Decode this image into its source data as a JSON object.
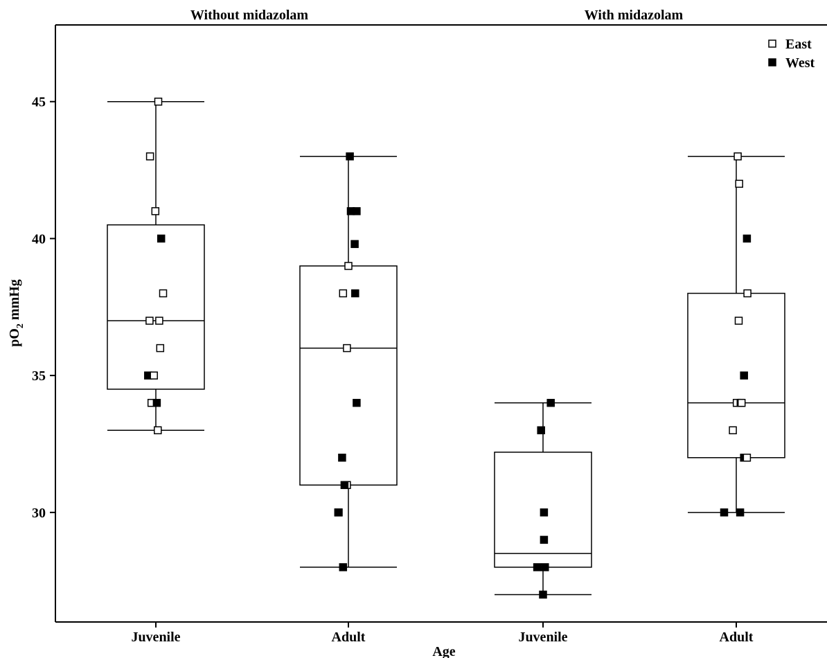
{
  "chart_data": {
    "type": "box",
    "title": "",
    "panels": [
      "Without midazolam",
      "With midazolam"
    ],
    "categories": [
      "Juvenile",
      "Adult",
      "Juvenile",
      "Adult"
    ],
    "xlabel": "Age",
    "ylabel_main": "pO",
    "ylabel_sub": "2",
    "ylabel_rest": " mmHg",
    "ylim": [
      26,
      47.8
    ],
    "yticks": [
      30,
      35,
      40,
      45
    ],
    "legend": {
      "position": "top-right",
      "entries": [
        {
          "name": "East",
          "marker": "open-square"
        },
        {
          "name": "West",
          "marker": "filled-square"
        }
      ]
    },
    "boxes": [
      {
        "panel": "Without midazolam",
        "category": "Juvenile",
        "whisker_low": 33,
        "q1": 34.5,
        "median": 37,
        "q3": 40.5,
        "whisker_high": 45
      },
      {
        "panel": "Without midazolam",
        "category": "Adult",
        "whisker_low": 28,
        "q1": 31,
        "median": 36,
        "q3": 39,
        "whisker_high": 43
      },
      {
        "panel": "With midazolam",
        "category": "Juvenile",
        "whisker_low": 27,
        "q1": 28,
        "median": 28.5,
        "q3": 32.2,
        "whisker_high": 34
      },
      {
        "panel": "With midazolam",
        "category": "Adult",
        "whisker_low": 30,
        "q1": 32,
        "median": 34,
        "q3": 38,
        "whisker_high": 43
      }
    ],
    "points": [
      {
        "box": 0,
        "group": "East",
        "y": 45,
        "jitter": 0.05
      },
      {
        "box": 0,
        "group": "East",
        "y": 43,
        "jitter": -0.12
      },
      {
        "box": 0,
        "group": "East",
        "y": 41,
        "jitter": -0.01
      },
      {
        "box": 0,
        "group": "West",
        "y": 40,
        "jitter": 0.11
      },
      {
        "box": 0,
        "group": "East",
        "y": 38,
        "jitter": 0.15
      },
      {
        "box": 0,
        "group": "East",
        "y": 37,
        "jitter": -0.13
      },
      {
        "box": 0,
        "group": "East",
        "y": 37,
        "jitter": 0.07
      },
      {
        "box": 0,
        "group": "East",
        "y": 36,
        "jitter": 0.09
      },
      {
        "box": 0,
        "group": "West",
        "y": 35,
        "jitter": -0.16
      },
      {
        "box": 0,
        "group": "East",
        "y": 35,
        "jitter": -0.04
      },
      {
        "box": 0,
        "group": "East",
        "y": 34,
        "jitter": -0.09
      },
      {
        "box": 0,
        "group": "West",
        "y": 34,
        "jitter": 0.02
      },
      {
        "box": 0,
        "group": "East",
        "y": 33,
        "jitter": 0.04
      },
      {
        "box": 1,
        "group": "West",
        "y": 43,
        "jitter": 0.03
      },
      {
        "box": 1,
        "group": "West",
        "y": 41,
        "jitter": 0.05
      },
      {
        "box": 1,
        "group": "West",
        "y": 41,
        "jitter": 0.17
      },
      {
        "box": 1,
        "group": "West",
        "y": 39.8,
        "jitter": 0.13
      },
      {
        "box": 1,
        "group": "East",
        "y": 39,
        "jitter": 0.0
      },
      {
        "box": 1,
        "group": "East",
        "y": 38,
        "jitter": -0.11
      },
      {
        "box": 1,
        "group": "West",
        "y": 38,
        "jitter": 0.14
      },
      {
        "box": 1,
        "group": "East",
        "y": 36,
        "jitter": -0.03
      },
      {
        "box": 1,
        "group": "West",
        "y": 34,
        "jitter": 0.17
      },
      {
        "box": 1,
        "group": "West",
        "y": 32,
        "jitter": -0.13
      },
      {
        "box": 1,
        "group": "East",
        "y": 31,
        "jitter": -0.03
      },
      {
        "box": 1,
        "group": "West",
        "y": 31,
        "jitter": -0.08
      },
      {
        "box": 1,
        "group": "East",
        "y": 30,
        "jitter": -0.2
      },
      {
        "box": 1,
        "group": "West",
        "y": 30,
        "jitter": -0.21
      },
      {
        "box": 1,
        "group": "West",
        "y": 28,
        "jitter": -0.11
      },
      {
        "box": 2,
        "group": "West",
        "y": 34,
        "jitter": 0.16
      },
      {
        "box": 2,
        "group": "West",
        "y": 33,
        "jitter": -0.04
      },
      {
        "box": 2,
        "group": "West",
        "y": 30,
        "jitter": 0.02
      },
      {
        "box": 2,
        "group": "West",
        "y": 29,
        "jitter": 0.02
      },
      {
        "box": 2,
        "group": "West",
        "y": 28,
        "jitter": -0.12
      },
      {
        "box": 2,
        "group": "West",
        "y": 28,
        "jitter": 0.04
      },
      {
        "box": 2,
        "group": "West",
        "y": 27,
        "jitter": 0.0
      },
      {
        "box": 3,
        "group": "East",
        "y": 43,
        "jitter": 0.03
      },
      {
        "box": 3,
        "group": "East",
        "y": 42,
        "jitter": 0.06
      },
      {
        "box": 3,
        "group": "West",
        "y": 40,
        "jitter": 0.22
      },
      {
        "box": 3,
        "group": "East",
        "y": 38,
        "jitter": 0.23
      },
      {
        "box": 3,
        "group": "East",
        "y": 37,
        "jitter": 0.05
      },
      {
        "box": 3,
        "group": "West",
        "y": 35,
        "jitter": 0.16
      },
      {
        "box": 3,
        "group": "East",
        "y": 34,
        "jitter": 0.01
      },
      {
        "box": 3,
        "group": "West",
        "y": 34,
        "jitter": 0.09
      },
      {
        "box": 3,
        "group": "East",
        "y": 34,
        "jitter": 0.11
      },
      {
        "box": 3,
        "group": "East",
        "y": 33,
        "jitter": -0.07
      },
      {
        "box": 3,
        "group": "West",
        "y": 32,
        "jitter": 0.16
      },
      {
        "box": 3,
        "group": "East",
        "y": 32,
        "jitter": 0.22
      },
      {
        "box": 3,
        "group": "West",
        "y": 30,
        "jitter": -0.25
      },
      {
        "box": 3,
        "group": "West",
        "y": 30,
        "jitter": 0.08
      }
    ]
  }
}
